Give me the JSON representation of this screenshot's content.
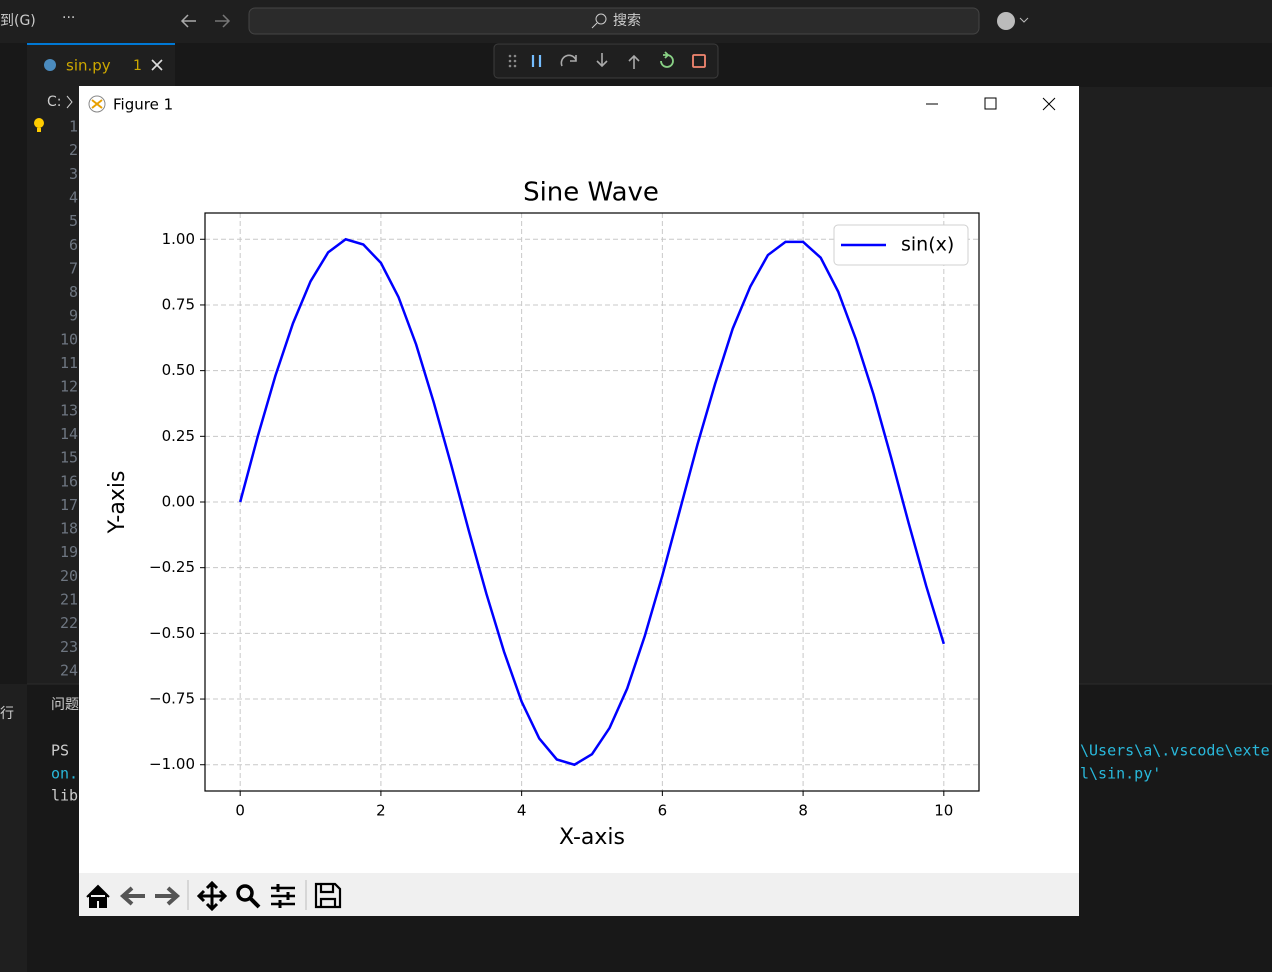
{
  "menu": {
    "goto": "到(G)",
    "search": "搜索"
  },
  "tab": {
    "filename": "sin.py",
    "problems": "1"
  },
  "breadcrumb": "C:",
  "line_numbers": [
    1,
    2,
    3,
    4,
    5,
    6,
    7,
    8,
    9,
    10,
    11,
    12,
    13,
    14,
    15,
    16,
    17,
    18,
    19,
    20,
    21,
    22,
    23,
    24
  ],
  "panel": {
    "tab": "问题",
    "side": "行",
    "terminal_lines": [
      "PS",
      "on.",
      "lib"
    ],
    "terminal_right": [
      "\\Users\\a\\.vscode\\exter",
      "l\\sin.py'"
    ]
  },
  "window": {
    "title": "Figure 1"
  },
  "chart_data": {
    "type": "line",
    "title": "Sine Wave",
    "xlabel": "X-axis",
    "ylabel": "Y-axis",
    "x": [
      0,
      0.25,
      0.5,
      0.75,
      1,
      1.25,
      1.5,
      1.75,
      2,
      2.25,
      2.5,
      2.75,
      3,
      3.25,
      3.5,
      3.75,
      4,
      4.25,
      4.5,
      4.75,
      5,
      5.25,
      5.5,
      5.75,
      6,
      6.25,
      6.5,
      6.75,
      7,
      7.25,
      7.5,
      7.75,
      8,
      8.25,
      8.5,
      8.75,
      9,
      9.25,
      9.5,
      9.75,
      10
    ],
    "series": [
      {
        "name": "sin(x)",
        "color": "#0000ff",
        "values": [
          0,
          0.25,
          0.48,
          0.68,
          0.84,
          0.95,
          1.0,
          0.98,
          0.91,
          0.78,
          0.6,
          0.38,
          0.14,
          -0.11,
          -0.35,
          -0.57,
          -0.76,
          -0.9,
          -0.98,
          -1.0,
          -0.96,
          -0.86,
          -0.71,
          -0.51,
          -0.28,
          -0.03,
          0.22,
          0.45,
          0.66,
          0.82,
          0.94,
          0.99,
          0.99,
          0.93,
          0.8,
          0.62,
          0.41,
          0.17,
          -0.08,
          -0.32,
          -0.54
        ]
      }
    ],
    "xlim": [
      -0.5,
      10.5
    ],
    "ylim": [
      -1.1,
      1.1
    ],
    "xticks": [
      0,
      2,
      4,
      6,
      8,
      10
    ],
    "yticks": [
      {
        "value": -1,
        "label": "−1.00"
      },
      {
        "value": -0.75,
        "label": "−0.75"
      },
      {
        "value": -0.5,
        "label": "−0.50"
      },
      {
        "value": -0.25,
        "label": "−0.25"
      },
      {
        "value": 0,
        "label": "0.00"
      },
      {
        "value": 0.25,
        "label": "0.25"
      },
      {
        "value": 0.5,
        "label": "0.50"
      },
      {
        "value": 0.75,
        "label": "0.75"
      },
      {
        "value": 1,
        "label": "1.00"
      }
    ],
    "grid": true,
    "legend": "upper right"
  }
}
